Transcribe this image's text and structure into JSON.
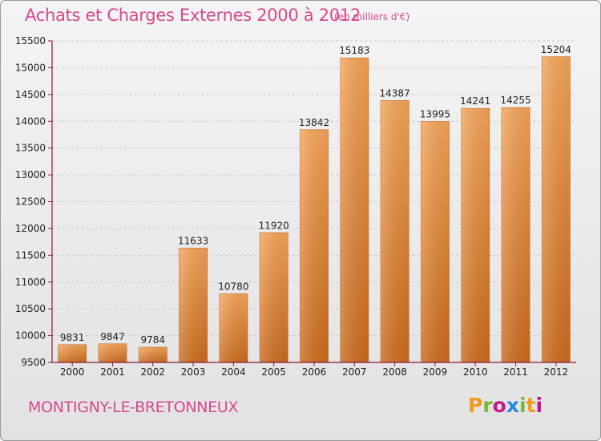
{
  "header": {
    "title": "Achats et Charges Externes 2000 à 2012",
    "subtitle": "(en milliers d'€)"
  },
  "footer": {
    "place": "MONTIGNY-LE-BRETONNEUX",
    "logo_letters": [
      "P",
      "r",
      "o",
      "x",
      "i",
      "t",
      "i"
    ]
  },
  "colors": {
    "title": "#d54a8a",
    "bar_top": "#f6a65a",
    "bar_bottom": "#cc6c1f",
    "axis": "#8b1a3a"
  },
  "chart_data": {
    "type": "bar",
    "title": "Achats et Charges Externes 2000 à 2012",
    "xlabel": "",
    "ylabel": "",
    "ylim": [
      9500,
      15500
    ],
    "yticks": [
      9500,
      10000,
      10500,
      11000,
      11500,
      12000,
      12500,
      13000,
      13500,
      14000,
      14500,
      15000,
      15500
    ],
    "grid": true,
    "categories": [
      "2000",
      "2001",
      "2002",
      "2003",
      "2004",
      "2005",
      "2006",
      "2007",
      "2008",
      "2009",
      "2010",
      "2011",
      "2012"
    ],
    "values": [
      9831,
      9847,
      9784,
      11633,
      10780,
      11920,
      13842,
      15183,
      14387,
      13995,
      14241,
      14255,
      15204
    ]
  }
}
